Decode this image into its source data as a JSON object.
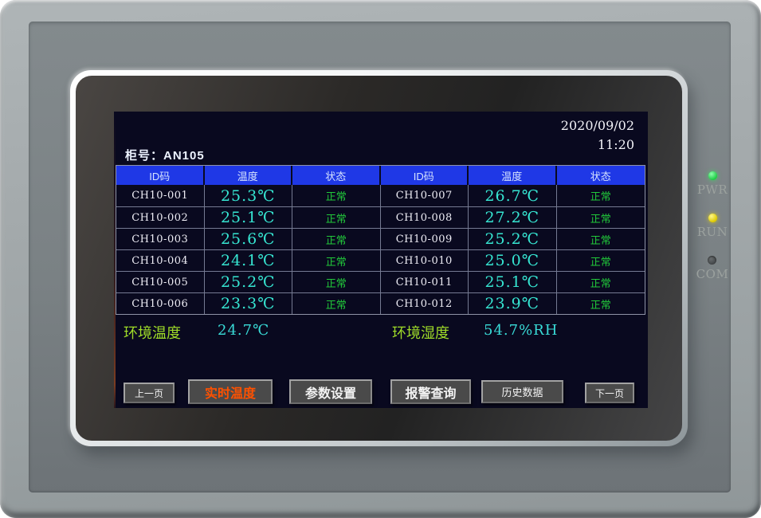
{
  "device": {
    "leds": [
      {
        "name": "power-led",
        "label": "PWR",
        "state": "on",
        "color": "#1ecc44"
      },
      {
        "name": "run-led",
        "label": "RUN",
        "state": "on",
        "color": "#ddc900"
      },
      {
        "name": "com-led",
        "label": "COM",
        "state": "off",
        "color": "#45494b"
      }
    ]
  },
  "screen": {
    "date": "2020/09/02",
    "time": "11:20",
    "cabinet": {
      "label": "柜号：",
      "value": "AN105"
    },
    "table": {
      "headers": [
        "ID码",
        "温度",
        "状态",
        "ID码",
        "温度",
        "状态"
      ],
      "rows": [
        [
          "CH10-001",
          "25.3℃",
          "正常",
          "CH10-007",
          "26.7℃",
          "正常"
        ],
        [
          "CH10-002",
          "25.1℃",
          "正常",
          "CH10-008",
          "27.2℃",
          "正常"
        ],
        [
          "CH10-003",
          "25.6℃",
          "正常",
          "CH10-009",
          "25.2℃",
          "正常"
        ],
        [
          "CH10-004",
          "24.1℃",
          "正常",
          "CH10-010",
          "25.0℃",
          "正常"
        ],
        [
          "CH10-005",
          "25.2℃",
          "正常",
          "CH10-011",
          "25.1℃",
          "正常"
        ],
        [
          "CH10-006",
          "23.3℃",
          "正常",
          "CH10-012",
          "23.9℃",
          "正常"
        ]
      ]
    },
    "ambient": {
      "temp_label": "环境温度",
      "temp_value": "24.7℃",
      "humidity_label": "环境湿度",
      "humidity_value": "54.7%RH"
    },
    "nav": {
      "items": [
        {
          "label": "上一页",
          "active": false
        },
        {
          "label": "实时温度",
          "active": true
        },
        {
          "label": "参数设置",
          "active": false
        },
        {
          "label": "报警查询",
          "active": false
        },
        {
          "label": "历史数据",
          "active": false
        },
        {
          "label": "下一页",
          "active": false
        }
      ]
    },
    "colors": {
      "lcd_background": "#09091f",
      "table_header_bg": "#1f38e6",
      "temp_value": "#36e6d2",
      "status_ok": "#21c93a",
      "ambient_label": "#9fdc28",
      "active_nav_text": "#ff5100"
    }
  }
}
